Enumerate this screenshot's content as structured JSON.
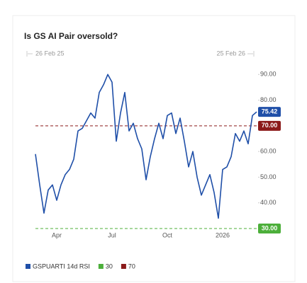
{
  "chart_data": {
    "type": "line",
    "title": "Is GS AI Pair oversold?",
    "start_label": "26 Feb 25",
    "end_label": "25 Feb 26",
    "series": [
      {
        "name": "GSPUARTI 14d RSI",
        "color": "#1f4fa8",
        "values": [
          59,
          47,
          36,
          45,
          47,
          41,
          47,
          51,
          53,
          57,
          68,
          69,
          72,
          75,
          73,
          83,
          86,
          90,
          87,
          64,
          75,
          83,
          68,
          71,
          65,
          61,
          49,
          58,
          65,
          71,
          65,
          74,
          75,
          67,
          73,
          64,
          54,
          60,
          50,
          43,
          47,
          51,
          44,
          34,
          53,
          54,
          58,
          67,
          64,
          68,
          63,
          74,
          75.42
        ]
      }
    ],
    "last_value_label": "75.42",
    "xlim": [
      0,
      52
    ],
    "xticks": [
      {
        "value": 5,
        "label": "Apr"
      },
      {
        "value": 18,
        "label": "Jul"
      },
      {
        "value": 31,
        "label": "Oct"
      },
      {
        "value": 44,
        "label": "2026"
      }
    ],
    "ylim": [
      30,
      92
    ],
    "yticks": [
      {
        "value": 40,
        "label": "40.00"
      },
      {
        "value": 50,
        "label": "50.00"
      },
      {
        "value": 60,
        "label": "60.00"
      },
      {
        "value": 70,
        "label": "70.00"
      },
      {
        "value": 80,
        "label": "80.00"
      },
      {
        "value": 90,
        "label": "90.00"
      }
    ],
    "reference_lines": [
      {
        "name": "30",
        "value": 30,
        "label": "30.00",
        "color": "#4caf3a"
      },
      {
        "name": "70",
        "value": 70,
        "label": "70.00",
        "color": "#8b1a1a"
      }
    ]
  }
}
